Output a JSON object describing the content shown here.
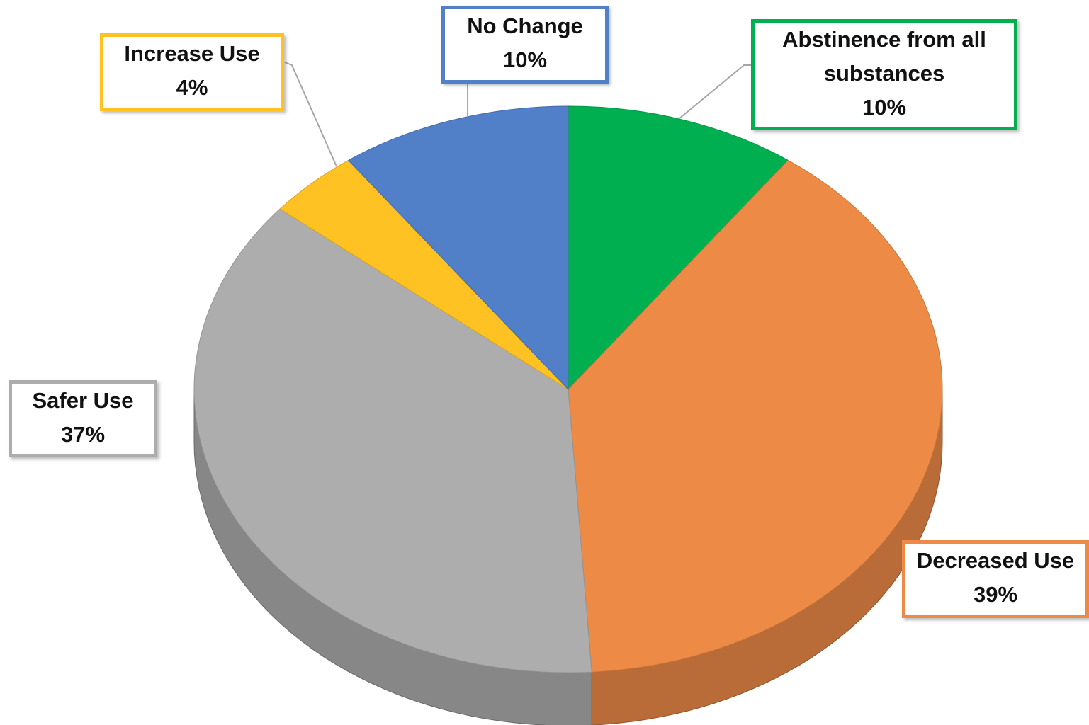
{
  "chart_data": {
    "type": "pie",
    "categories": [
      "Abstinence from all substances",
      "Decreased Use",
      "Safer Use",
      "Increase Use",
      "No Change"
    ],
    "values": [
      10,
      39,
      37,
      4,
      10
    ],
    "value_labels": [
      "10%",
      "39%",
      "37%",
      "4%",
      "10%"
    ],
    "colors": [
      "#00b050",
      "#ed8b46",
      "#adadad",
      "#ffc222",
      "#517fc8"
    ]
  }
}
